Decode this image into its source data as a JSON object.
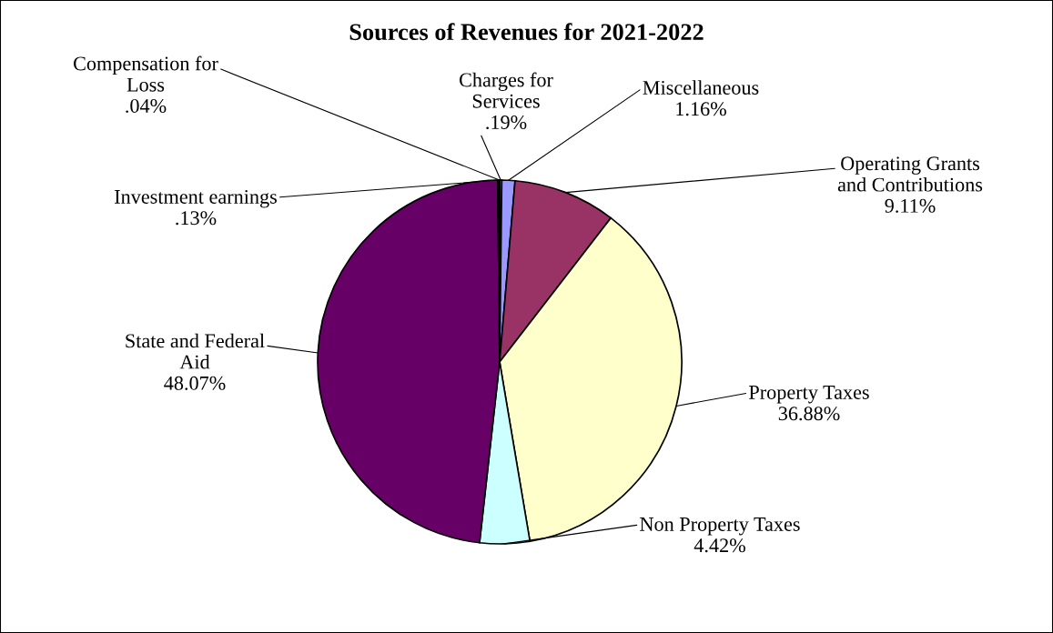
{
  "chart_data": {
    "type": "pie",
    "title": "Sources of Revenues for 2021-2022",
    "categories": [
      "Charges for Services",
      "Miscellaneous",
      "Operating Grants and Contributions",
      "Property Taxes",
      "Non Property Taxes",
      "State and Federal Aid",
      "Investment earnings",
      "Compensation for Loss"
    ],
    "values": [
      0.19,
      1.16,
      9.11,
      36.88,
      4.42,
      48.07,
      0.13,
      0.04
    ],
    "value_labels": [
      ".19%",
      "1.16%",
      "9.11%",
      "36.88%",
      "4.42%",
      "48.07%",
      ".13%",
      ".04%"
    ],
    "colors": [
      "#ccccff",
      "#9999ff",
      "#993366",
      "#ffffcc",
      "#ccffff",
      "#660066",
      "#ff8080",
      "#0066cc"
    ],
    "legend": false
  }
}
